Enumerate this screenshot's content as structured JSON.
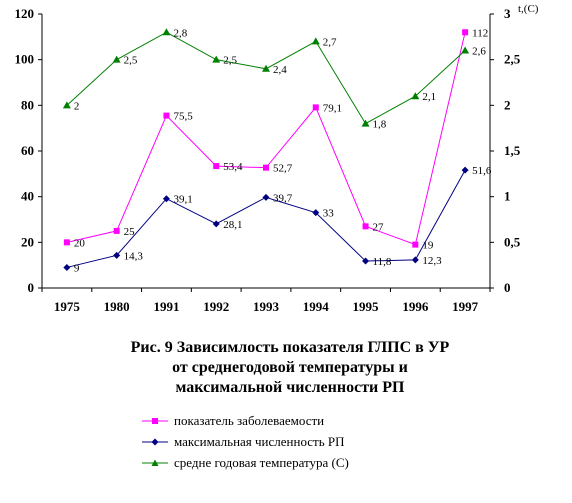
{
  "chart_data": {
    "type": "line",
    "categories": [
      "1975",
      "1980",
      "1991",
      "1992",
      "1993",
      "1994",
      "1995",
      "1996",
      "1997"
    ],
    "y_left": {
      "ticks": [
        "0",
        "20",
        "40",
        "60",
        "80",
        "100",
        "120"
      ],
      "ylim": [
        0,
        120
      ]
    },
    "y_right": {
      "label": "t,(C)",
      "ticks": [
        "0",
        "0,5",
        "1",
        "1,5",
        "2",
        "2,5",
        "3"
      ],
      "ylim": [
        0,
        3
      ]
    },
    "grid": false,
    "legend_position": "bottom",
    "series": [
      {
        "name": "показатель заболеваемости",
        "axis": "left",
        "color": "#ff00ff",
        "marker": "square",
        "values": [
          20,
          25,
          75.5,
          53.4,
          52.7,
          79.1,
          27,
          19,
          112
        ],
        "labels": [
          "20",
          "25",
          "75,5",
          "53,4",
          "52,7",
          "79,1",
          "27",
          "19",
          "112"
        ]
      },
      {
        "name": "максимальная численность РП",
        "axis": "left",
        "color": "#000080",
        "marker": "diamond",
        "values": [
          9,
          14.3,
          39.1,
          28.1,
          39.7,
          33,
          11.8,
          12.3,
          51.6
        ],
        "labels": [
          "9",
          "14,3",
          "39,1",
          "28,1",
          "39,7",
          "33",
          "11,8",
          "12,3",
          "51,6"
        ]
      },
      {
        "name": "средне годовая температура (С)",
        "axis": "right",
        "color": "#008000",
        "marker": "triangle",
        "values": [
          2,
          2.5,
          2.8,
          2.5,
          2.4,
          2.7,
          1.8,
          2.1,
          2.6
        ],
        "labels": [
          "2",
          "2,5",
          "2,8",
          "2,5",
          "2,4",
          "2,7",
          "1,8",
          "2,1",
          "2,6"
        ]
      }
    ]
  },
  "caption": {
    "line1": "Рис. 9 Зависимлость показателя ГЛПС в УР",
    "line2": "от среднегодовой температуры и",
    "line3": "максимальной численности РП"
  }
}
